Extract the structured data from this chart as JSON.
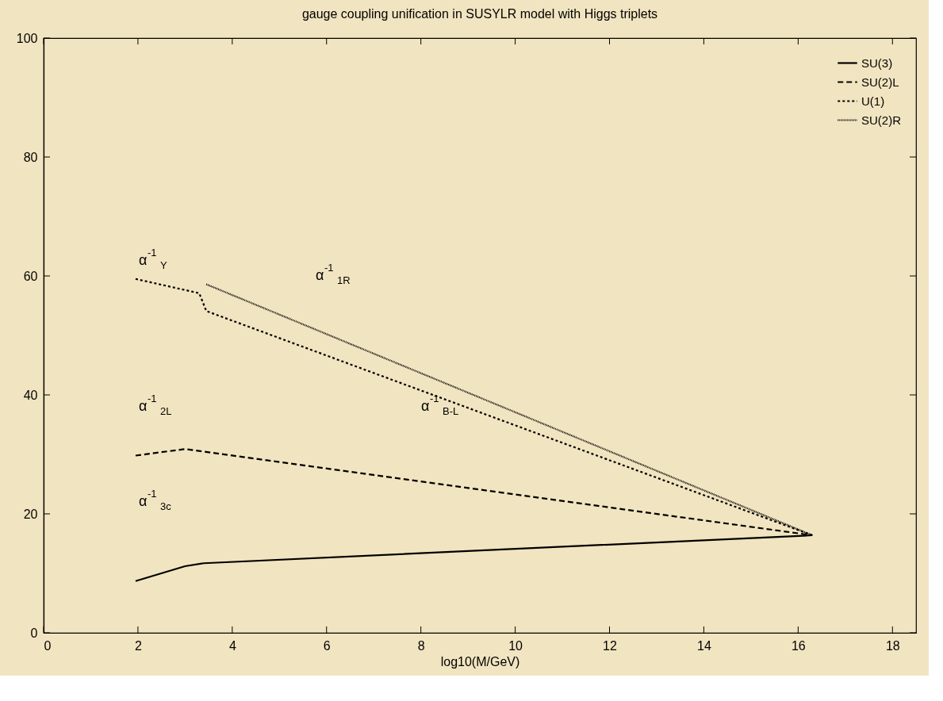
{
  "chart_data": {
    "type": "line",
    "title": "gauge coupling unification in SUSYLR model with Higgs triplets",
    "xlabel": "log10(M/GeV)",
    "xlim": [
      0,
      18.5
    ],
    "ylim": [
      0,
      100
    ],
    "xticks": [
      0,
      2,
      4,
      6,
      8,
      10,
      12,
      14,
      16,
      18
    ],
    "yticks": [
      0,
      20,
      40,
      60,
      80,
      100
    ],
    "grid": false,
    "legend": "top right",
    "marker": "none",
    "series": [
      {
        "name": "SU(3)",
        "color": "#000000",
        "line_style": "solid",
        "x": [
          1.95,
          3.0,
          3.4,
          16.3
        ],
        "values": [
          8.7,
          11.2,
          11.7,
          16.4
        ]
      },
      {
        "name": "SU(2)L",
        "color": "#000000",
        "line_style": "dashed",
        "x": [
          1.95,
          3.0,
          16.3
        ],
        "values": [
          29.8,
          30.9,
          16.4
        ]
      },
      {
        "name": "U(1)",
        "color": "#000000",
        "line_style": "dotted",
        "x": [
          1.95,
          3.3,
          3.45,
          16.3
        ],
        "values": [
          59.5,
          57.1,
          54.1,
          16.4
        ]
      },
      {
        "name": "SU(2)R",
        "color": "#000000",
        "line_style": "dotted",
        "x": [
          3.45,
          16.3
        ],
        "values": [
          58.6,
          16.4
        ]
      }
    ],
    "annotations": [
      "α$^{-1}$$_{Y}$",
      "α$^{-1}$$_{1R}$",
      "α$^{-1}$$_{2L}$",
      "α$^{-1}$$_{B-L}$",
      "α$^{-1}$$_{3c}$"
    ]
  }
}
